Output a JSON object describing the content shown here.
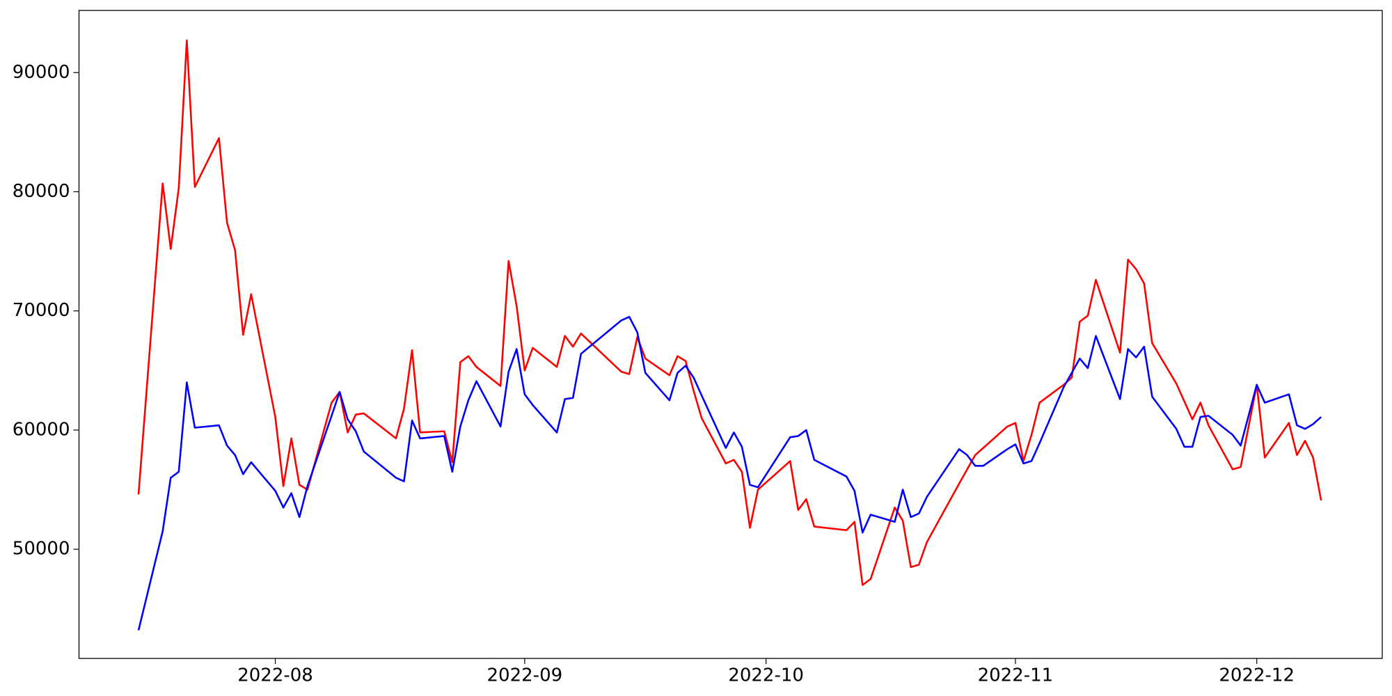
{
  "chart_data": {
    "type": "line",
    "x": [
      196,
      199,
      200,
      201,
      202,
      203,
      206,
      207,
      208,
      209,
      210,
      213,
      214,
      215,
      216,
      217,
      220,
      221,
      222,
      223,
      224,
      228,
      229,
      230,
      231,
      234,
      235,
      236,
      237,
      238,
      241,
      242,
      243,
      244,
      245,
      248,
      249,
      250,
      251,
      256,
      257,
      258,
      259,
      262,
      263,
      264,
      265,
      266,
      269,
      270,
      271,
      272,
      273,
      277,
      278,
      279,
      280,
      284,
      285,
      286,
      287,
      290,
      291,
      292,
      293,
      294,
      298,
      299,
      300,
      301,
      304,
      305,
      306,
      307,
      308,
      311,
      312,
      313,
      314,
      315,
      318,
      319,
      320,
      321,
      322,
      325,
      326,
      327,
      328,
      329,
      332,
      333,
      335,
      336,
      339,
      340,
      341,
      342,
      343
    ],
    "series": [
      {
        "color": "#ff0000",
        "values": [
          54600,
          80700,
          75200,
          80300,
          92700,
          80400,
          84500,
          77400,
          75100,
          68000,
          71400,
          61100,
          55300,
          59300,
          55400,
          55000,
          62300,
          63200,
          59800,
          61300,
          61400,
          59300,
          61800,
          66700,
          59800,
          59900,
          57300,
          65700,
          66200,
          65300,
          63700,
          74200,
          70400,
          65000,
          66900,
          65300,
          67900,
          67000,
          68100,
          64900,
          64700,
          67800,
          66000,
          64600,
          66200,
          65800,
          63300,
          61000,
          57200,
          57500,
          56500,
          51800,
          55000,
          57400,
          53300,
          54200,
          51900,
          51600,
          52300,
          47000,
          47500,
          53500,
          52400,
          48500,
          48700,
          50600,
          55500,
          56700,
          57900,
          58500,
          60300,
          60600,
          57400,
          59600,
          62300,
          63800,
          64400,
          69100,
          69600,
          72600,
          66500,
          74300,
          73500,
          72300,
          67300,
          63900,
          62400,
          60900,
          62300,
          60400,
          56700,
          56900,
          63800,
          57700,
          60600,
          57900,
          59100,
          57700,
          54100
        ]
      },
      {
        "color": "#0000ff",
        "values": [
          43200,
          51500,
          56000,
          56500,
          64000,
          60200,
          60400,
          58700,
          57900,
          56300,
          57300,
          54900,
          53500,
          54700,
          52700,
          55300,
          61200,
          63200,
          60900,
          59900,
          58200,
          56000,
          55700,
          60800,
          59300,
          59500,
          56500,
          60300,
          62500,
          64100,
          60300,
          64900,
          66800,
          63000,
          62100,
          59800,
          62600,
          62700,
          66400,
          69200,
          69500,
          68200,
          64800,
          62500,
          64800,
          65400,
          64400,
          62900,
          58500,
          59800,
          58600,
          55400,
          55200,
          59400,
          59500,
          60000,
          57500,
          56100,
          54900,
          51400,
          52900,
          52300,
          55000,
          52700,
          53000,
          54400,
          58400,
          57900,
          57000,
          57000,
          58400,
          58800,
          57200,
          57400,
          58900,
          63600,
          64800,
          66000,
          65200,
          67900,
          62600,
          66800,
          66100,
          67000,
          62800,
          60100,
          58600,
          58600,
          61100,
          61200,
          59600,
          58700,
          63800,
          62300,
          63000,
          60400,
          60100,
          60500,
          61100
        ]
      }
    ],
    "xlim": [
      188.6,
      350.6
    ],
    "xticks": [
      {
        "value": 213,
        "label": "2022-08"
      },
      {
        "value": 244,
        "label": "2022-09"
      },
      {
        "value": 274,
        "label": "2022-10"
      },
      {
        "value": 305,
        "label": "2022-11"
      },
      {
        "value": 335,
        "label": "2022-12"
      }
    ],
    "ylim": [
      40838,
      95214
    ],
    "yticks": [
      50000,
      60000,
      70000,
      80000,
      90000
    ],
    "grid": false
  }
}
